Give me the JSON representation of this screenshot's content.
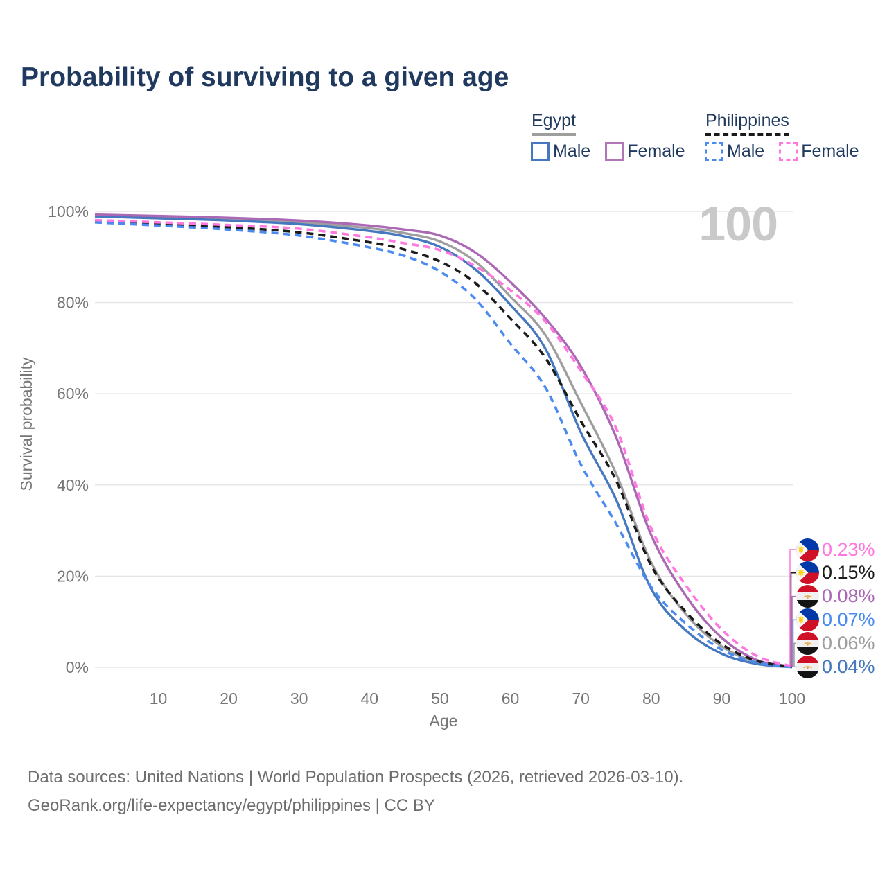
{
  "title": "Probability of surviving to a given age",
  "watermark": "100",
  "legend": {
    "groups": [
      {
        "name": "Egypt",
        "underline_style": "solid",
        "underline_color": "#9e9e9e",
        "items": [
          {
            "label": "Male",
            "color": "#4678bf",
            "dashed": false
          },
          {
            "label": "Female",
            "color": "#b275b8",
            "dashed": false
          }
        ]
      },
      {
        "name": "Philippines",
        "underline_style": "dashed",
        "underline_color": "#1a1a1a",
        "items": [
          {
            "label": "Male",
            "color": "#4b8bf0",
            "dashed": true
          },
          {
            "label": "Female",
            "color": "#ff78e0",
            "dashed": true
          }
        ]
      }
    ]
  },
  "chart_data": {
    "type": "line",
    "title": "Probability of surviving to a given age",
    "xlabel": "Age",
    "ylabel": "Survival probability",
    "xlim": [
      1,
      100
    ],
    "ylim": [
      0,
      100
    ],
    "grid": "horizontal",
    "x_ticks": [
      {
        "value": 10,
        "label": "10"
      },
      {
        "value": 20,
        "label": "20"
      },
      {
        "value": 30,
        "label": "30"
      },
      {
        "value": 40,
        "label": "40"
      },
      {
        "value": 50,
        "label": "50"
      },
      {
        "value": 60,
        "label": "60"
      },
      {
        "value": 70,
        "label": "70"
      },
      {
        "value": 80,
        "label": "80"
      },
      {
        "value": 90,
        "label": "90"
      },
      {
        "value": 100,
        "label": "100"
      }
    ],
    "y_ticks": [
      {
        "value": 0,
        "label": "0%"
      },
      {
        "value": 20,
        "label": "20%"
      },
      {
        "value": 40,
        "label": "40%"
      },
      {
        "value": 60,
        "label": "60%"
      },
      {
        "value": 80,
        "label": "80%"
      },
      {
        "value": 100,
        "label": "100%"
      }
    ],
    "x": [
      1,
      10,
      20,
      30,
      40,
      45,
      50,
      55,
      60,
      65,
      70,
      75,
      80,
      85,
      90,
      95,
      100
    ],
    "series": [
      {
        "id": "egypt-total",
        "country": "Egypt",
        "sex": "Both",
        "color": "#9e9e9e",
        "dashed": false,
        "end_label": "0.06%",
        "values": [
          99.1,
          98.8,
          98.3,
          97.6,
          96.3,
          95.2,
          93.4,
          89.0,
          81.3,
          72.8,
          58.0,
          42.5,
          23.0,
          11.5,
          4.6,
          1.1,
          0.06
        ]
      },
      {
        "id": "egypt-male",
        "country": "Egypt",
        "sex": "Male",
        "color": "#4678bf",
        "dashed": false,
        "end_label": "0.04%",
        "values": [
          98.9,
          98.5,
          98.0,
          97.2,
          95.7,
          94.5,
          92.2,
          87.3,
          79.5,
          69.8,
          51.5,
          36.8,
          17.2,
          8.0,
          3.0,
          0.75,
          0.04
        ]
      },
      {
        "id": "egypt-female",
        "country": "Egypt",
        "sex": "Female",
        "color": "#ab68b5",
        "dashed": false,
        "end_label": "0.08%",
        "values": [
          99.3,
          99.0,
          98.6,
          98.0,
          96.9,
          96.0,
          94.7,
          91.0,
          84.5,
          76.5,
          66.0,
          50.5,
          29.0,
          15.5,
          6.5,
          1.6,
          0.08
        ]
      },
      {
        "id": "philippines-total",
        "country": "Philippines",
        "sex": "Both",
        "color": "#1b1b1b",
        "dashed": true,
        "end_label": "0.15%",
        "values": [
          97.9,
          97.2,
          96.5,
          95.4,
          93.2,
          91.6,
          89.0,
          84.3,
          76.5,
          67.8,
          54.0,
          41.0,
          22.3,
          12.0,
          5.1,
          1.4,
          0.15
        ]
      },
      {
        "id": "philippines-male",
        "country": "Philippines",
        "sex": "Male",
        "color": "#4b8bf0",
        "dashed": true,
        "end_label": "0.07%",
        "values": [
          97.6,
          96.9,
          96.0,
          94.7,
          92.1,
          90.2,
          86.8,
          80.8,
          71.0,
          61.3,
          44.5,
          31.5,
          17.6,
          9.5,
          3.9,
          1.0,
          0.07
        ]
      },
      {
        "id": "philippines-female",
        "country": "Philippines",
        "sex": "Female",
        "color": "#ff78e0",
        "dashed": true,
        "end_label": "0.23%",
        "values": [
          98.1,
          97.6,
          97.0,
          96.2,
          94.3,
          93.0,
          91.5,
          88.0,
          82.7,
          75.8,
          65.0,
          52.5,
          30.5,
          17.8,
          8.3,
          2.5,
          0.23
        ]
      }
    ]
  },
  "value_labels": [
    {
      "text": "0.23%",
      "color": "#ff78e0",
      "flag": "philippines-flag-icon"
    },
    {
      "text": "0.15%",
      "color": "#1b1b1b",
      "flag": "philippines-flag-icon"
    },
    {
      "text": "0.08%",
      "color": "#ab68b5",
      "flag": "egypt-flag-icon"
    },
    {
      "text": "0.07%",
      "color": "#4b8bf0",
      "flag": "philippines-flag-icon"
    },
    {
      "text": "0.06%",
      "color": "#9e9e9e",
      "flag": "egypt-flag-icon"
    },
    {
      "text": "0.04%",
      "color": "#4678bf",
      "flag": "egypt-flag-icon"
    }
  ],
  "footer": {
    "line1": "Data sources: United Nations | World Population Prospects (2026, retrieved 2026-03-10).",
    "line2": "GeoRank.org/life-expectancy/egypt/philippines | CC BY"
  }
}
